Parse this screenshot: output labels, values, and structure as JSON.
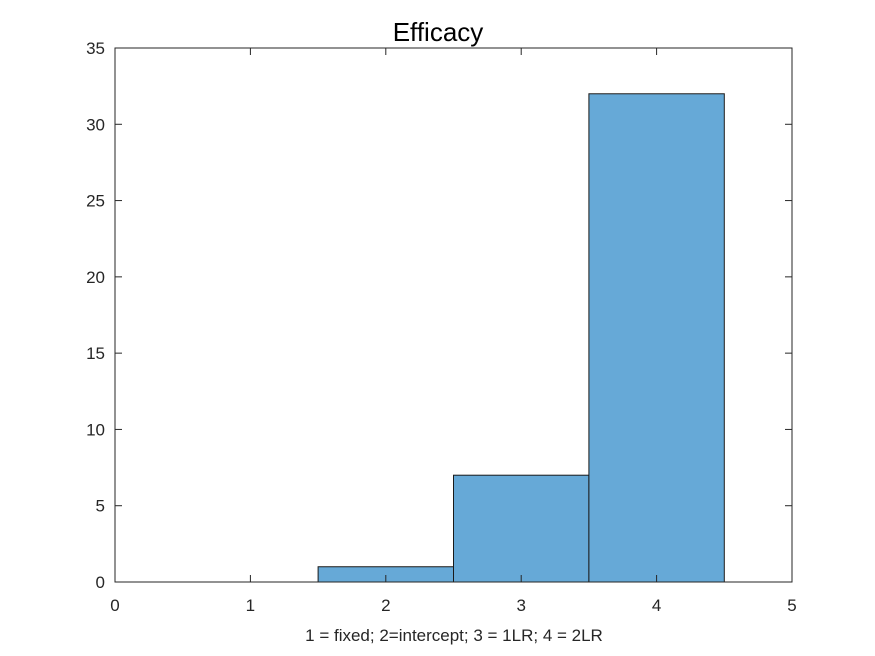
{
  "chart_data": {
    "type": "bar",
    "title": "Efficacy",
    "xlabel": "1 = fixed; 2=intercept; 3 = 1LR; 4 = 2LR",
    "ylabel": "",
    "xlim": [
      0,
      5
    ],
    "ylim": [
      0,
      35
    ],
    "xticks": [
      "0",
      "1",
      "2",
      "3",
      "4",
      "5"
    ],
    "yticks": [
      "0",
      "5",
      "10",
      "15",
      "20",
      "25",
      "30",
      "35"
    ],
    "categories": [
      1,
      2,
      3,
      4
    ],
    "values": [
      0,
      1,
      7,
      32
    ],
    "bar_color": "#66a9d7",
    "edge_color": "#1a1a1a",
    "grid": false
  }
}
